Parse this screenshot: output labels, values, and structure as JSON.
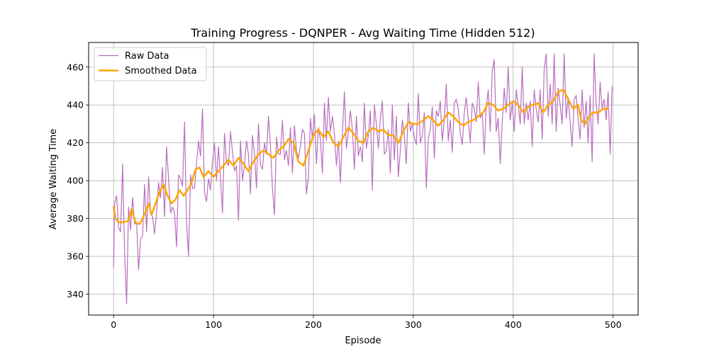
{
  "chart_data": {
    "type": "line",
    "title": "Training Progress - DQNPER - Avg Waiting Time (Hidden 512)",
    "xlabel": "Episode",
    "ylabel": "Average Waiting Time",
    "xlim": [
      -25,
      525
    ],
    "ylim": [
      329,
      473
    ],
    "xticks": [
      0,
      100,
      200,
      300,
      400,
      500
    ],
    "yticks": [
      340,
      360,
      380,
      400,
      420,
      440,
      460
    ],
    "grid": true,
    "legend_position": "upper-left",
    "colors": {
      "raw": "#b86fbe",
      "smoothed": "#ffa500",
      "grid": "#b0b0b0"
    },
    "series": [
      {
        "name": "Raw Data",
        "key": "raw"
      },
      {
        "name": "Smoothed Data",
        "key": "smoothed"
      }
    ],
    "smoothed_points": [
      [
        0,
        386
      ],
      [
        2,
        380
      ],
      [
        5,
        378
      ],
      [
        10,
        378
      ],
      [
        15,
        379
      ],
      [
        18,
        385
      ],
      [
        22,
        378
      ],
      [
        26,
        377
      ],
      [
        30,
        381
      ],
      [
        35,
        388
      ],
      [
        38,
        382
      ],
      [
        42,
        388
      ],
      [
        46,
        394
      ],
      [
        50,
        398
      ],
      [
        54,
        392
      ],
      [
        58,
        388
      ],
      [
        62,
        390
      ],
      [
        66,
        395
      ],
      [
        70,
        392
      ],
      [
        74,
        395
      ],
      [
        78,
        399
      ],
      [
        82,
        406
      ],
      [
        86,
        407
      ],
      [
        90,
        402
      ],
      [
        95,
        405
      ],
      [
        100,
        402
      ],
      [
        105,
        405
      ],
      [
        110,
        408
      ],
      [
        115,
        411
      ],
      [
        120,
        408
      ],
      [
        125,
        412
      ],
      [
        130,
        409
      ],
      [
        135,
        405
      ],
      [
        140,
        410
      ],
      [
        145,
        414
      ],
      [
        150,
        416
      ],
      [
        155,
        414
      ],
      [
        160,
        412
      ],
      [
        165,
        416
      ],
      [
        170,
        418
      ],
      [
        175,
        422
      ],
      [
        180,
        420
      ],
      [
        185,
        410
      ],
      [
        190,
        408
      ],
      [
        195,
        416
      ],
      [
        200,
        424
      ],
      [
        205,
        427
      ],
      [
        210,
        423
      ],
      [
        215,
        426
      ],
      [
        220,
        420
      ],
      [
        225,
        418
      ],
      [
        230,
        423
      ],
      [
        235,
        428
      ],
      [
        240,
        425
      ],
      [
        245,
        421
      ],
      [
        250,
        420
      ],
      [
        255,
        426
      ],
      [
        260,
        428
      ],
      [
        265,
        426
      ],
      [
        270,
        427
      ],
      [
        275,
        424
      ],
      [
        280,
        424
      ],
      [
        285,
        420
      ],
      [
        290,
        426
      ],
      [
        295,
        431
      ],
      [
        300,
        430
      ],
      [
        305,
        430
      ],
      [
        310,
        432
      ],
      [
        315,
        434
      ],
      [
        320,
        432
      ],
      [
        325,
        429
      ],
      [
        330,
        432
      ],
      [
        335,
        436
      ],
      [
        340,
        434
      ],
      [
        345,
        431
      ],
      [
        350,
        429
      ],
      [
        355,
        431
      ],
      [
        360,
        432
      ],
      [
        365,
        434
      ],
      [
        370,
        436
      ],
      [
        375,
        441
      ],
      [
        380,
        440
      ],
      [
        385,
        437
      ],
      [
        390,
        438
      ],
      [
        395,
        440
      ],
      [
        400,
        442
      ],
      [
        405,
        440
      ],
      [
        410,
        436
      ],
      [
        415,
        439
      ],
      [
        420,
        440
      ],
      [
        425,
        441
      ],
      [
        430,
        436
      ],
      [
        435,
        440
      ],
      [
        440,
        442
      ],
      [
        445,
        447
      ],
      [
        450,
        448
      ],
      [
        455,
        443
      ],
      [
        460,
        438
      ],
      [
        465,
        440
      ],
      [
        468,
        432
      ],
      [
        472,
        430
      ],
      [
        476,
        434
      ],
      [
        480,
        436
      ],
      [
        485,
        436
      ],
      [
        490,
        438
      ],
      [
        495,
        438
      ]
    ],
    "raw_anchor_points": [
      [
        0,
        354
      ],
      [
        1,
        388
      ],
      [
        3,
        392
      ],
      [
        5,
        375
      ],
      [
        7,
        373
      ],
      [
        9,
        409
      ],
      [
        11,
        362
      ],
      [
        13,
        335
      ],
      [
        15,
        386
      ],
      [
        17,
        374
      ],
      [
        19,
        391
      ],
      [
        21,
        377
      ],
      [
        23,
        378
      ],
      [
        25,
        353
      ],
      [
        27,
        369
      ],
      [
        29,
        371
      ],
      [
        31,
        398
      ],
      [
        33,
        373
      ],
      [
        35,
        402
      ],
      [
        37,
        383
      ],
      [
        39,
        381
      ],
      [
        41,
        372
      ],
      [
        43,
        383
      ],
      [
        45,
        399
      ],
      [
        47,
        391
      ],
      [
        49,
        407
      ],
      [
        51,
        381
      ],
      [
        53,
        418
      ],
      [
        55,
        401
      ],
      [
        57,
        383
      ],
      [
        59,
        386
      ],
      [
        61,
        383
      ],
      [
        63,
        365
      ],
      [
        65,
        403
      ],
      [
        67,
        401
      ],
      [
        69,
        397
      ],
      [
        71,
        431
      ],
      [
        73,
        378
      ],
      [
        75,
        360
      ],
      [
        77,
        403
      ],
      [
        79,
        396
      ],
      [
        81,
        396
      ],
      [
        83,
        409
      ],
      [
        85,
        421
      ],
      [
        87,
        413
      ],
      [
        89,
        438
      ],
      [
        91,
        394
      ],
      [
        93,
        389
      ],
      [
        95,
        401
      ],
      [
        97,
        395
      ],
      [
        99,
        410
      ],
      [
        101,
        420
      ],
      [
        103,
        400
      ],
      [
        105,
        418
      ],
      [
        107,
        401
      ],
      [
        109,
        383
      ],
      [
        111,
        425
      ],
      [
        113,
        410
      ],
      [
        115,
        408
      ],
      [
        117,
        426
      ],
      [
        119,
        415
      ],
      [
        121,
        405
      ],
      [
        123,
        408
      ],
      [
        125,
        379
      ],
      [
        127,
        421
      ],
      [
        129,
        400
      ],
      [
        131,
        408
      ],
      [
        133,
        421
      ],
      [
        135,
        414
      ],
      [
        137,
        393
      ],
      [
        139,
        424
      ],
      [
        141,
        414
      ],
      [
        143,
        396
      ],
      [
        145,
        430
      ],
      [
        147,
        408
      ],
      [
        149,
        406
      ],
      [
        151,
        420
      ],
      [
        153,
        414
      ],
      [
        155,
        434
      ],
      [
        157,
        418
      ],
      [
        159,
        396
      ],
      [
        161,
        382
      ],
      [
        163,
        423
      ],
      [
        165,
        414
      ],
      [
        167,
        414
      ],
      [
        169,
        432
      ],
      [
        171,
        411
      ],
      [
        173,
        416
      ],
      [
        175,
        408
      ],
      [
        177,
        428
      ],
      [
        179,
        404
      ],
      [
        181,
        429
      ],
      [
        183,
        416
      ],
      [
        185,
        412
      ],
      [
        187,
        418
      ],
      [
        189,
        427
      ],
      [
        191,
        425
      ],
      [
        193,
        393
      ],
      [
        195,
        402
      ],
      [
        197,
        433
      ],
      [
        199,
        422
      ],
      [
        201,
        435
      ],
      [
        203,
        409
      ],
      [
        205,
        428
      ],
      [
        207,
        422
      ],
      [
        209,
        404
      ],
      [
        211,
        441
      ],
      [
        213,
        421
      ],
      [
        215,
        444
      ],
      [
        217,
        426
      ],
      [
        219,
        434
      ],
      [
        221,
        425
      ],
      [
        223,
        408
      ],
      [
        225,
        421
      ],
      [
        227,
        399
      ],
      [
        229,
        425
      ],
      [
        231,
        447
      ],
      [
        233,
        417
      ],
      [
        235,
        425
      ],
      [
        237,
        437
      ],
      [
        239,
        427
      ],
      [
        241,
        406
      ],
      [
        243,
        434
      ],
      [
        245,
        413
      ],
      [
        247,
        418
      ],
      [
        249,
        410
      ],
      [
        251,
        441
      ],
      [
        253,
        417
      ],
      [
        255,
        424
      ],
      [
        257,
        437
      ],
      [
        259,
        395
      ],
      [
        261,
        440
      ],
      [
        263,
        430
      ],
      [
        265,
        417
      ],
      [
        267,
        433
      ],
      [
        269,
        442
      ],
      [
        271,
        414
      ],
      [
        273,
        416
      ],
      [
        275,
        427
      ],
      [
        277,
        404
      ],
      [
        279,
        440
      ],
      [
        281,
        411
      ],
      [
        283,
        434
      ],
      [
        285,
        402
      ],
      [
        287,
        416
      ],
      [
        289,
        432
      ],
      [
        291,
        424
      ],
      [
        293,
        409
      ],
      [
        295,
        441
      ],
      [
        297,
        426
      ],
      [
        299,
        430
      ],
      [
        301,
        423
      ],
      [
        303,
        419
      ],
      [
        305,
        446
      ],
      [
        307,
        420
      ],
      [
        309,
        424
      ],
      [
        311,
        436
      ],
      [
        313,
        396
      ],
      [
        315,
        422
      ],
      [
        317,
        427
      ],
      [
        319,
        439
      ],
      [
        321,
        412
      ],
      [
        323,
        437
      ],
      [
        325,
        434
      ],
      [
        327,
        442
      ],
      [
        329,
        421
      ],
      [
        331,
        432
      ],
      [
        333,
        451
      ],
      [
        335,
        421
      ],
      [
        337,
        432
      ],
      [
        339,
        415
      ],
      [
        341,
        441
      ],
      [
        343,
        443
      ],
      [
        345,
        438
      ],
      [
        347,
        425
      ],
      [
        349,
        419
      ],
      [
        351,
        436
      ],
      [
        353,
        444
      ],
      [
        355,
        432
      ],
      [
        357,
        420
      ],
      [
        359,
        441
      ],
      [
        361,
        438
      ],
      [
        363,
        431
      ],
      [
        365,
        452
      ],
      [
        367,
        433
      ],
      [
        369,
        436
      ],
      [
        371,
        414
      ],
      [
        373,
        439
      ],
      [
        375,
        448
      ],
      [
        377,
        426
      ],
      [
        379,
        458
      ],
      [
        381,
        464
      ],
      [
        383,
        426
      ],
      [
        385,
        433
      ],
      [
        387,
        409
      ],
      [
        389,
        431
      ],
      [
        391,
        449
      ],
      [
        393,
        436
      ],
      [
        395,
        460
      ],
      [
        397,
        432
      ],
      [
        399,
        441
      ],
      [
        401,
        426
      ],
      [
        403,
        448
      ],
      [
        405,
        440
      ],
      [
        407,
        430
      ],
      [
        409,
        460
      ],
      [
        411,
        430
      ],
      [
        413,
        441
      ],
      [
        415,
        432
      ],
      [
        417,
        442
      ],
      [
        419,
        418
      ],
      [
        421,
        448
      ],
      [
        423,
        438
      ],
      [
        425,
        431
      ],
      [
        427,
        448
      ],
      [
        429,
        422
      ],
      [
        431,
        459
      ],
      [
        433,
        467
      ],
      [
        435,
        434
      ],
      [
        437,
        451
      ],
      [
        439,
        430
      ],
      [
        441,
        467
      ],
      [
        443,
        426
      ],
      [
        445,
        449
      ],
      [
        447,
        440
      ],
      [
        449,
        430
      ],
      [
        451,
        467
      ],
      [
        453,
        433
      ],
      [
        455,
        444
      ],
      [
        457,
        431
      ],
      [
        459,
        418
      ],
      [
        461,
        443
      ],
      [
        463,
        445
      ],
      [
        465,
        432
      ],
      [
        467,
        422
      ],
      [
        469,
        448
      ],
      [
        471,
        428
      ],
      [
        473,
        442
      ],
      [
        475,
        420
      ],
      [
        477,
        445
      ],
      [
        479,
        410
      ],
      [
        481,
        467
      ],
      [
        483,
        440
      ],
      [
        485,
        430
      ],
      [
        487,
        452
      ],
      [
        489,
        438
      ],
      [
        491,
        443
      ],
      [
        493,
        432
      ],
      [
        495,
        447
      ],
      [
        497,
        414
      ],
      [
        499,
        450
      ]
    ]
  }
}
